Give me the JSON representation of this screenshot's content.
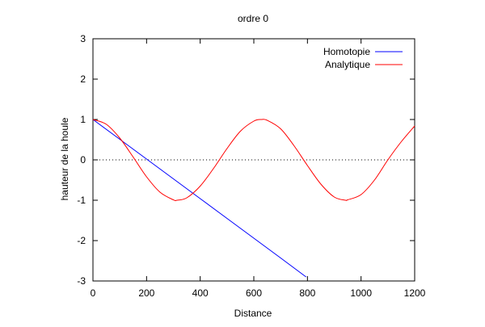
{
  "chart_data": {
    "type": "line",
    "title": "ordre 0",
    "xlabel": "Distance",
    "ylabel": "hauteur de la houle",
    "xlim": [
      0,
      1200
    ],
    "ylim": [
      -3,
      3
    ],
    "xticks": [
      0,
      200,
      400,
      600,
      800,
      1000,
      1200
    ],
    "yticks": [
      -3,
      -2,
      -1,
      0,
      1,
      2,
      3
    ],
    "zero_line": "dotted",
    "grid": false,
    "legend_position": "top-right",
    "series": [
      {
        "name": "Homotopie",
        "color": "#0000ff",
        "x": [
          0,
          100,
          200,
          300,
          400,
          500,
          600,
          700,
          795
        ],
        "y": [
          1.0,
          0.51,
          0.02,
          -0.47,
          -0.96,
          -1.45,
          -1.94,
          -2.43,
          -2.9
        ]
      },
      {
        "name": "Analytique",
        "color": "#ff0000",
        "x": [
          0,
          50,
          100,
          150,
          200,
          250,
          300,
          314,
          350,
          400,
          450,
          500,
          550,
          600,
          628,
          650,
          700,
          750,
          800,
          850,
          900,
          942,
          950,
          1000,
          1050,
          1100,
          1150,
          1200
        ],
        "y": [
          1.0,
          0.88,
          0.54,
          0.07,
          -0.42,
          -0.8,
          -0.99,
          -1.0,
          -0.94,
          -0.65,
          -0.21,
          0.28,
          0.71,
          0.96,
          1.0,
          0.98,
          0.77,
          0.35,
          -0.14,
          -0.6,
          -0.92,
          -1.0,
          -0.99,
          -0.86,
          -0.5,
          0.0,
          0.45,
          0.84
        ]
      }
    ]
  }
}
